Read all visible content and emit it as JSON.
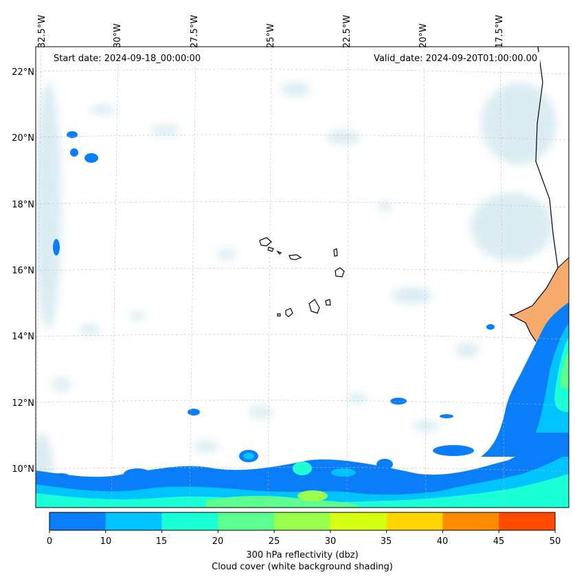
{
  "header": {
    "start_date": "Start date: 2024-09-18_00:00:00",
    "valid_date": "Valid_date: 2024-09-20T01:00:00.00"
  },
  "axes": {
    "lon_labels": [
      "32.5°W",
      "30°W",
      "27.5°W",
      "25°W",
      "22.5°W",
      "20°W",
      "17.5°W"
    ],
    "lat_labels": [
      "22°N",
      "20°N",
      "18°N",
      "16°N",
      "14°N",
      "12°N",
      "10°N"
    ]
  },
  "colorbar": {
    "ticks": [
      "0",
      "10",
      "15",
      "20",
      "25",
      "30",
      "35",
      "40",
      "45",
      "50"
    ],
    "colors": [
      "#0a7ef8",
      "#00c3ff",
      "#1affd6",
      "#5cff8f",
      "#9bff4d",
      "#d6ff12",
      "#ffd600",
      "#ff8c00",
      "#ff4b00"
    ],
    "label_line1": "300 hPa reflectivity (dbz)",
    "label_line2": "Cloud cover (white background shading)"
  },
  "map": {
    "land_color": "#f5a15b",
    "cloud_color": "#cfe6ee",
    "coastline_color": "#000000",
    "features": [
      "Cape Verde islands",
      "West African coast",
      "convective band (south)"
    ]
  }
}
